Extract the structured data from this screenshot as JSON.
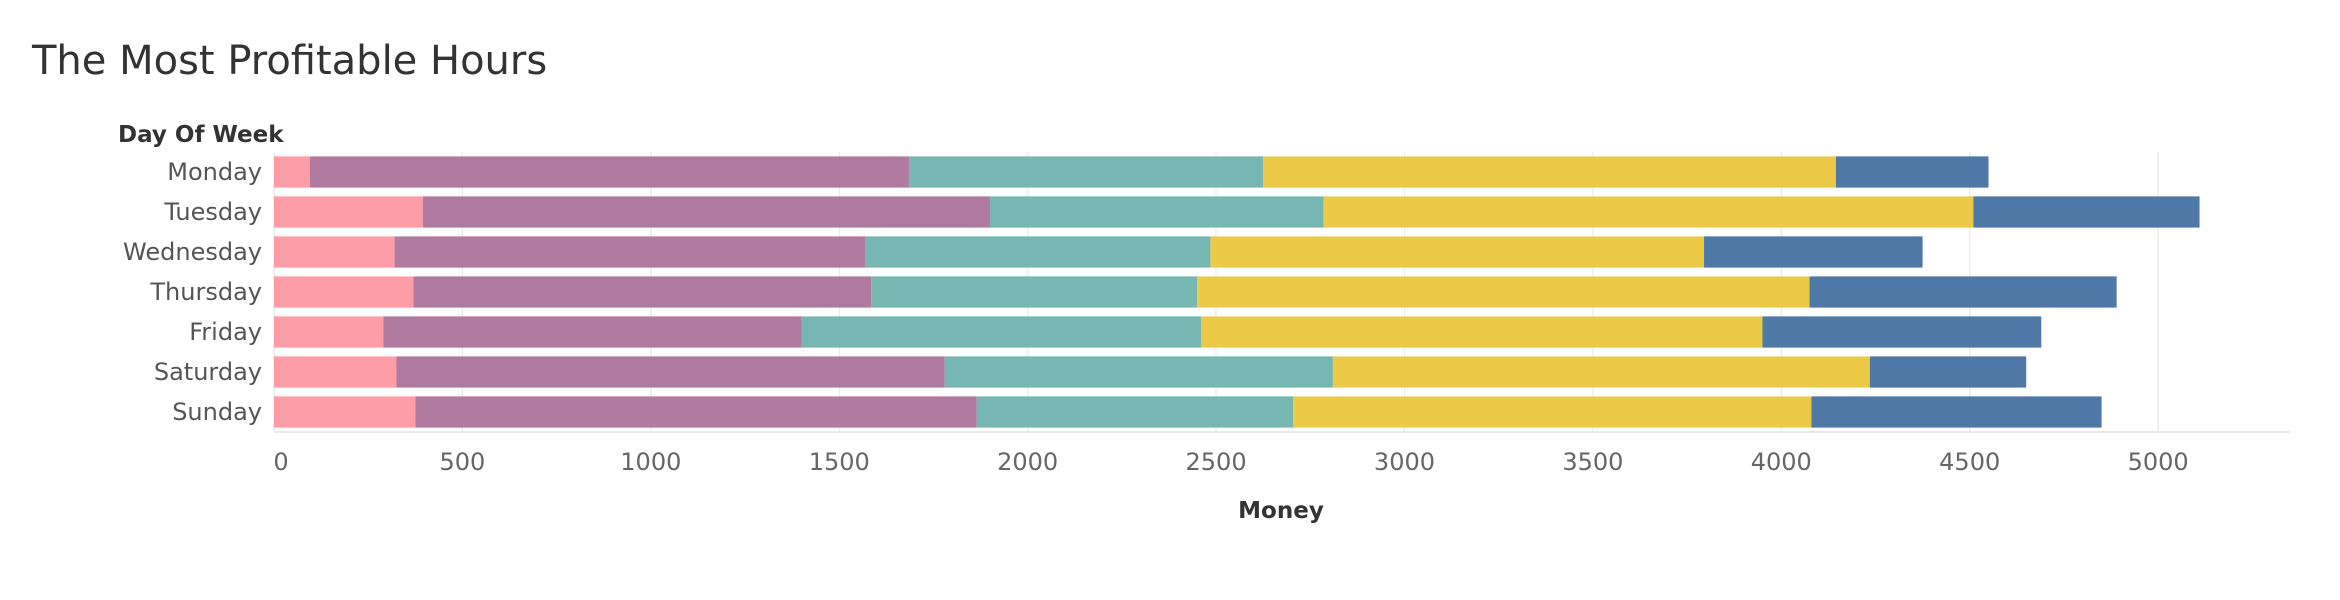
{
  "chart_data": {
    "type": "bar",
    "orientation": "horizontal",
    "stacked": true,
    "title": "The Most Profitable Hours",
    "xlabel": "Money",
    "ylabel": "Day Of Week",
    "categories": [
      "Monday",
      "Tuesday",
      "Wednesday",
      "Thursday",
      "Friday",
      "Saturday",
      "Sunday"
    ],
    "xlim": [
      0,
      5350
    ],
    "xticks": [
      0,
      500,
      1000,
      1500,
      2000,
      2500,
      3000,
      3500,
      4000,
      4500,
      5000
    ],
    "grid": true,
    "series": [
      {
        "color": "#ff9da7",
        "values": [
          95,
          395,
          320,
          370,
          290,
          325,
          375
        ]
      },
      {
        "color": "#b07aa1",
        "values": [
          1590,
          1505,
          1250,
          1215,
          1110,
          1455,
          1490
        ]
      },
      {
        "color": "#76b7b2",
        "values": [
          940,
          885,
          915,
          865,
          1060,
          1030,
          840
        ]
      },
      {
        "color": "#edc948",
        "values": [
          1520,
          1725,
          1310,
          1625,
          1490,
          1425,
          1375
        ]
      },
      {
        "color": "#4e79a7",
        "values": [
          405,
          600,
          580,
          815,
          740,
          415,
          770
        ]
      }
    ]
  }
}
